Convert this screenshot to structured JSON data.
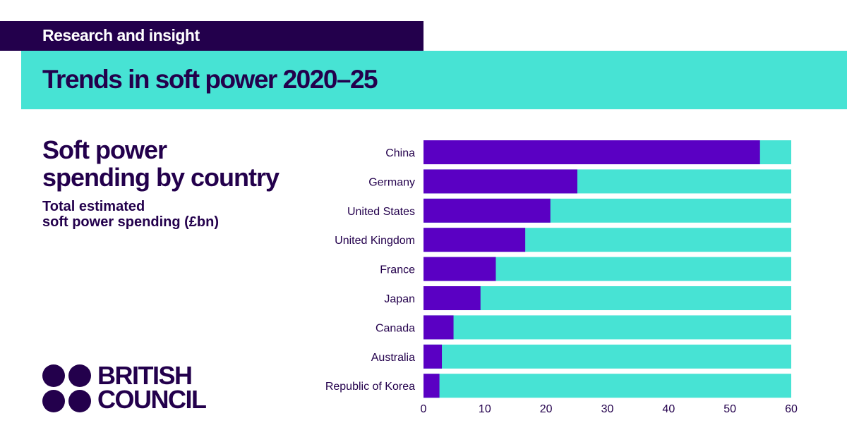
{
  "header": {
    "tag": "Research and insight",
    "title": "Trends in soft power 2020–25"
  },
  "panel": {
    "heading_line1": "Soft power",
    "heading_line2": "spending by country",
    "sub_line1": "Total estimated",
    "sub_line2": "soft power spending (£bn)"
  },
  "logo": {
    "line1": "BRITISH",
    "line2": "COUNCIL"
  },
  "colors": {
    "dark_purple": "#23004c",
    "bar_purple": "#5a00c3",
    "teal": "#47e3d4"
  },
  "chart_data": {
    "type": "bar",
    "orientation": "horizontal",
    "title": "Soft power spending by country",
    "subtitle": "Total estimated soft power spending (£bn)",
    "categories": [
      "China",
      "Germany",
      "United States",
      "United Kingdom",
      "France",
      "Japan",
      "Canada",
      "Australia",
      "Republic of Korea"
    ],
    "values": [
      54.9,
      25.1,
      20.7,
      16.6,
      11.8,
      9.3,
      4.9,
      3.0,
      2.6
    ],
    "xlim": [
      0,
      60
    ],
    "xticks": [
      0,
      10,
      20,
      30,
      40,
      50,
      60
    ],
    "background_bar_to": 60,
    "grid": false,
    "legend": "none"
  }
}
